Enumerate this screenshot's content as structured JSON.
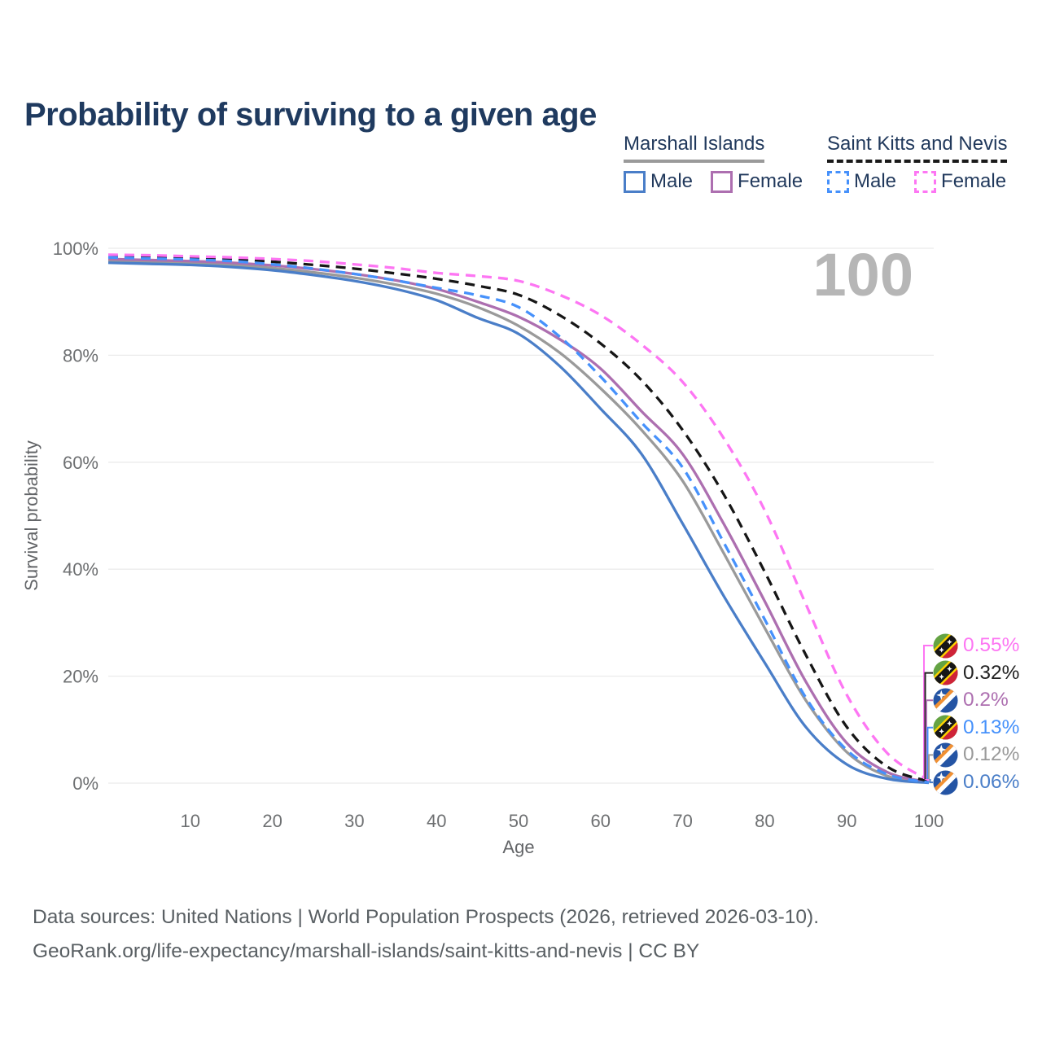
{
  "title": "Probability of surviving to a given age",
  "watermark": "100",
  "legend": {
    "groups": [
      {
        "name": "Marshall Islands",
        "line_style": "solid",
        "underline_color": "#9a9a9a",
        "items": [
          {
            "label": "Male",
            "color": "#4a7ec8"
          },
          {
            "label": "Female",
            "color": "#ad6fb0"
          }
        ]
      },
      {
        "name": "Saint Kitts and Nevis",
        "line_style": "dashed",
        "underline_color": "#1a1a1a",
        "items": [
          {
            "label": "Male",
            "color": "#4691fb"
          },
          {
            "label": "Female",
            "color": "#fd76f3"
          }
        ]
      }
    ]
  },
  "colors": {
    "title_text": "#1f3a5f",
    "axis_text": "#6e7072",
    "gridline": "#ebebeb",
    "watermark": "#b6b6b6",
    "footer_text": "#595f63"
  },
  "chart_data": {
    "type": "line",
    "title": "Probability of surviving to a given age",
    "xlabel": "Age",
    "ylabel": "Survival probability",
    "xlim": [
      0,
      100
    ],
    "ylim": [
      0,
      100
    ],
    "grid": "horizontal-only",
    "x_ticks": [
      10,
      20,
      30,
      40,
      50,
      60,
      70,
      80,
      90,
      100
    ],
    "y_tick_values": [
      0,
      20,
      40,
      60,
      80,
      100
    ],
    "y_tick_labels": [
      "0%",
      "20%",
      "40%",
      "60%",
      "80%",
      "100%"
    ],
    "x": [
      0,
      5,
      10,
      15,
      20,
      25,
      30,
      35,
      40,
      45,
      50,
      55,
      60,
      65,
      70,
      75,
      80,
      85,
      90,
      95,
      100
    ],
    "series": [
      {
        "id": "marshall-islands-average",
        "country": "Marshall Islands",
        "sex": "both",
        "color": "#9a9a9a",
        "dashed": false,
        "values": [
          97.7,
          97.5,
          97.3,
          96.9,
          96.3,
          95.5,
          94.5,
          93.2,
          91.5,
          89.0,
          85.5,
          80.5,
          73.8,
          66.0,
          56.5,
          43.0,
          29.0,
          15.5,
          5.8,
          1.3,
          0.12
        ]
      },
      {
        "id": "marshall-islands-female",
        "country": "Marshall Islands",
        "sex": "female",
        "color": "#ad6fb0",
        "dashed": false,
        "values": [
          98.0,
          97.8,
          97.6,
          97.3,
          96.8,
          96.1,
          95.2,
          94.0,
          92.4,
          90.0,
          87.2,
          83.0,
          77.5,
          69.5,
          61.5,
          48.5,
          34.0,
          19.0,
          7.5,
          2.0,
          0.2
        ]
      },
      {
        "id": "marshall-islands-male",
        "country": "Marshall Islands",
        "sex": "male",
        "color": "#4a7ec8",
        "dashed": false,
        "values": [
          97.3,
          97.1,
          96.9,
          96.5,
          95.9,
          95.0,
          93.9,
          92.4,
          90.3,
          87.0,
          84.0,
          78.0,
          70.0,
          61.5,
          48.5,
          35.0,
          22.5,
          10.5,
          3.5,
          0.8,
          0.06
        ]
      },
      {
        "id": "saint-kitts-and-nevis-average",
        "country": "Saint Kitts and Nevis",
        "sex": "both",
        "color": "#161616",
        "dashed": true,
        "values": [
          98.5,
          98.3,
          98.1,
          97.9,
          97.5,
          96.9,
          96.2,
          95.3,
          94.3,
          93.0,
          91.3,
          87.5,
          82.2,
          75.3,
          66.0,
          54.0,
          39.5,
          24.0,
          10.5,
          3.0,
          0.32
        ]
      },
      {
        "id": "saint-kitts-and-nevis-female",
        "country": "Saint Kitts and Nevis",
        "sex": "female",
        "color": "#fd76f3",
        "dashed": true,
        "values": [
          98.8,
          98.7,
          98.5,
          98.3,
          98.0,
          97.6,
          97.0,
          96.3,
          95.4,
          94.8,
          93.9,
          91.3,
          87.5,
          82.0,
          75.0,
          64.5,
          51.0,
          33.5,
          16.5,
          5.5,
          0.55
        ]
      },
      {
        "id": "saint-kitts-and-nevis-male",
        "country": "Saint Kitts and Nevis",
        "sex": "male",
        "color": "#4691fb",
        "dashed": true,
        "values": [
          98.3,
          98.1,
          97.9,
          97.6,
          97.0,
          96.2,
          95.2,
          94.0,
          92.6,
          91.2,
          89.0,
          83.5,
          76.0,
          67.4,
          59.0,
          45.0,
          30.6,
          16.0,
          6.2,
          1.6,
          0.13
        ]
      }
    ],
    "end_labels": [
      {
        "value": "0.55%",
        "color": "#fd76f3",
        "country": "Saint Kitts and Nevis",
        "sex": "female",
        "flag": "saint-kitts-and-nevis"
      },
      {
        "value": "0.32%",
        "color": "#222222",
        "country": "Saint Kitts and Nevis",
        "sex": "both",
        "flag": "saint-kitts-and-nevis"
      },
      {
        "value": "0.2%",
        "color": "#ad6fb0",
        "country": "Marshall Islands",
        "sex": "female",
        "flag": "marshall-islands"
      },
      {
        "value": "0.13%",
        "color": "#4691fb",
        "country": "Saint Kitts and Nevis",
        "sex": "male",
        "flag": "saint-kitts-and-nevis"
      },
      {
        "value": "0.12%",
        "color": "#9a9a9a",
        "country": "Marshall Islands",
        "sex": "both",
        "flag": "marshall-islands"
      },
      {
        "value": "0.06%",
        "color": "#4a7ec8",
        "country": "Marshall Islands",
        "sex": "male",
        "flag": "marshall-islands"
      }
    ]
  },
  "footer": {
    "line1": "Data sources: United Nations | World Population Prospects (2026, retrieved 2026-03-10).",
    "line2": "GeoRank.org/life-expectancy/marshall-islands/saint-kitts-and-nevis | CC BY"
  }
}
